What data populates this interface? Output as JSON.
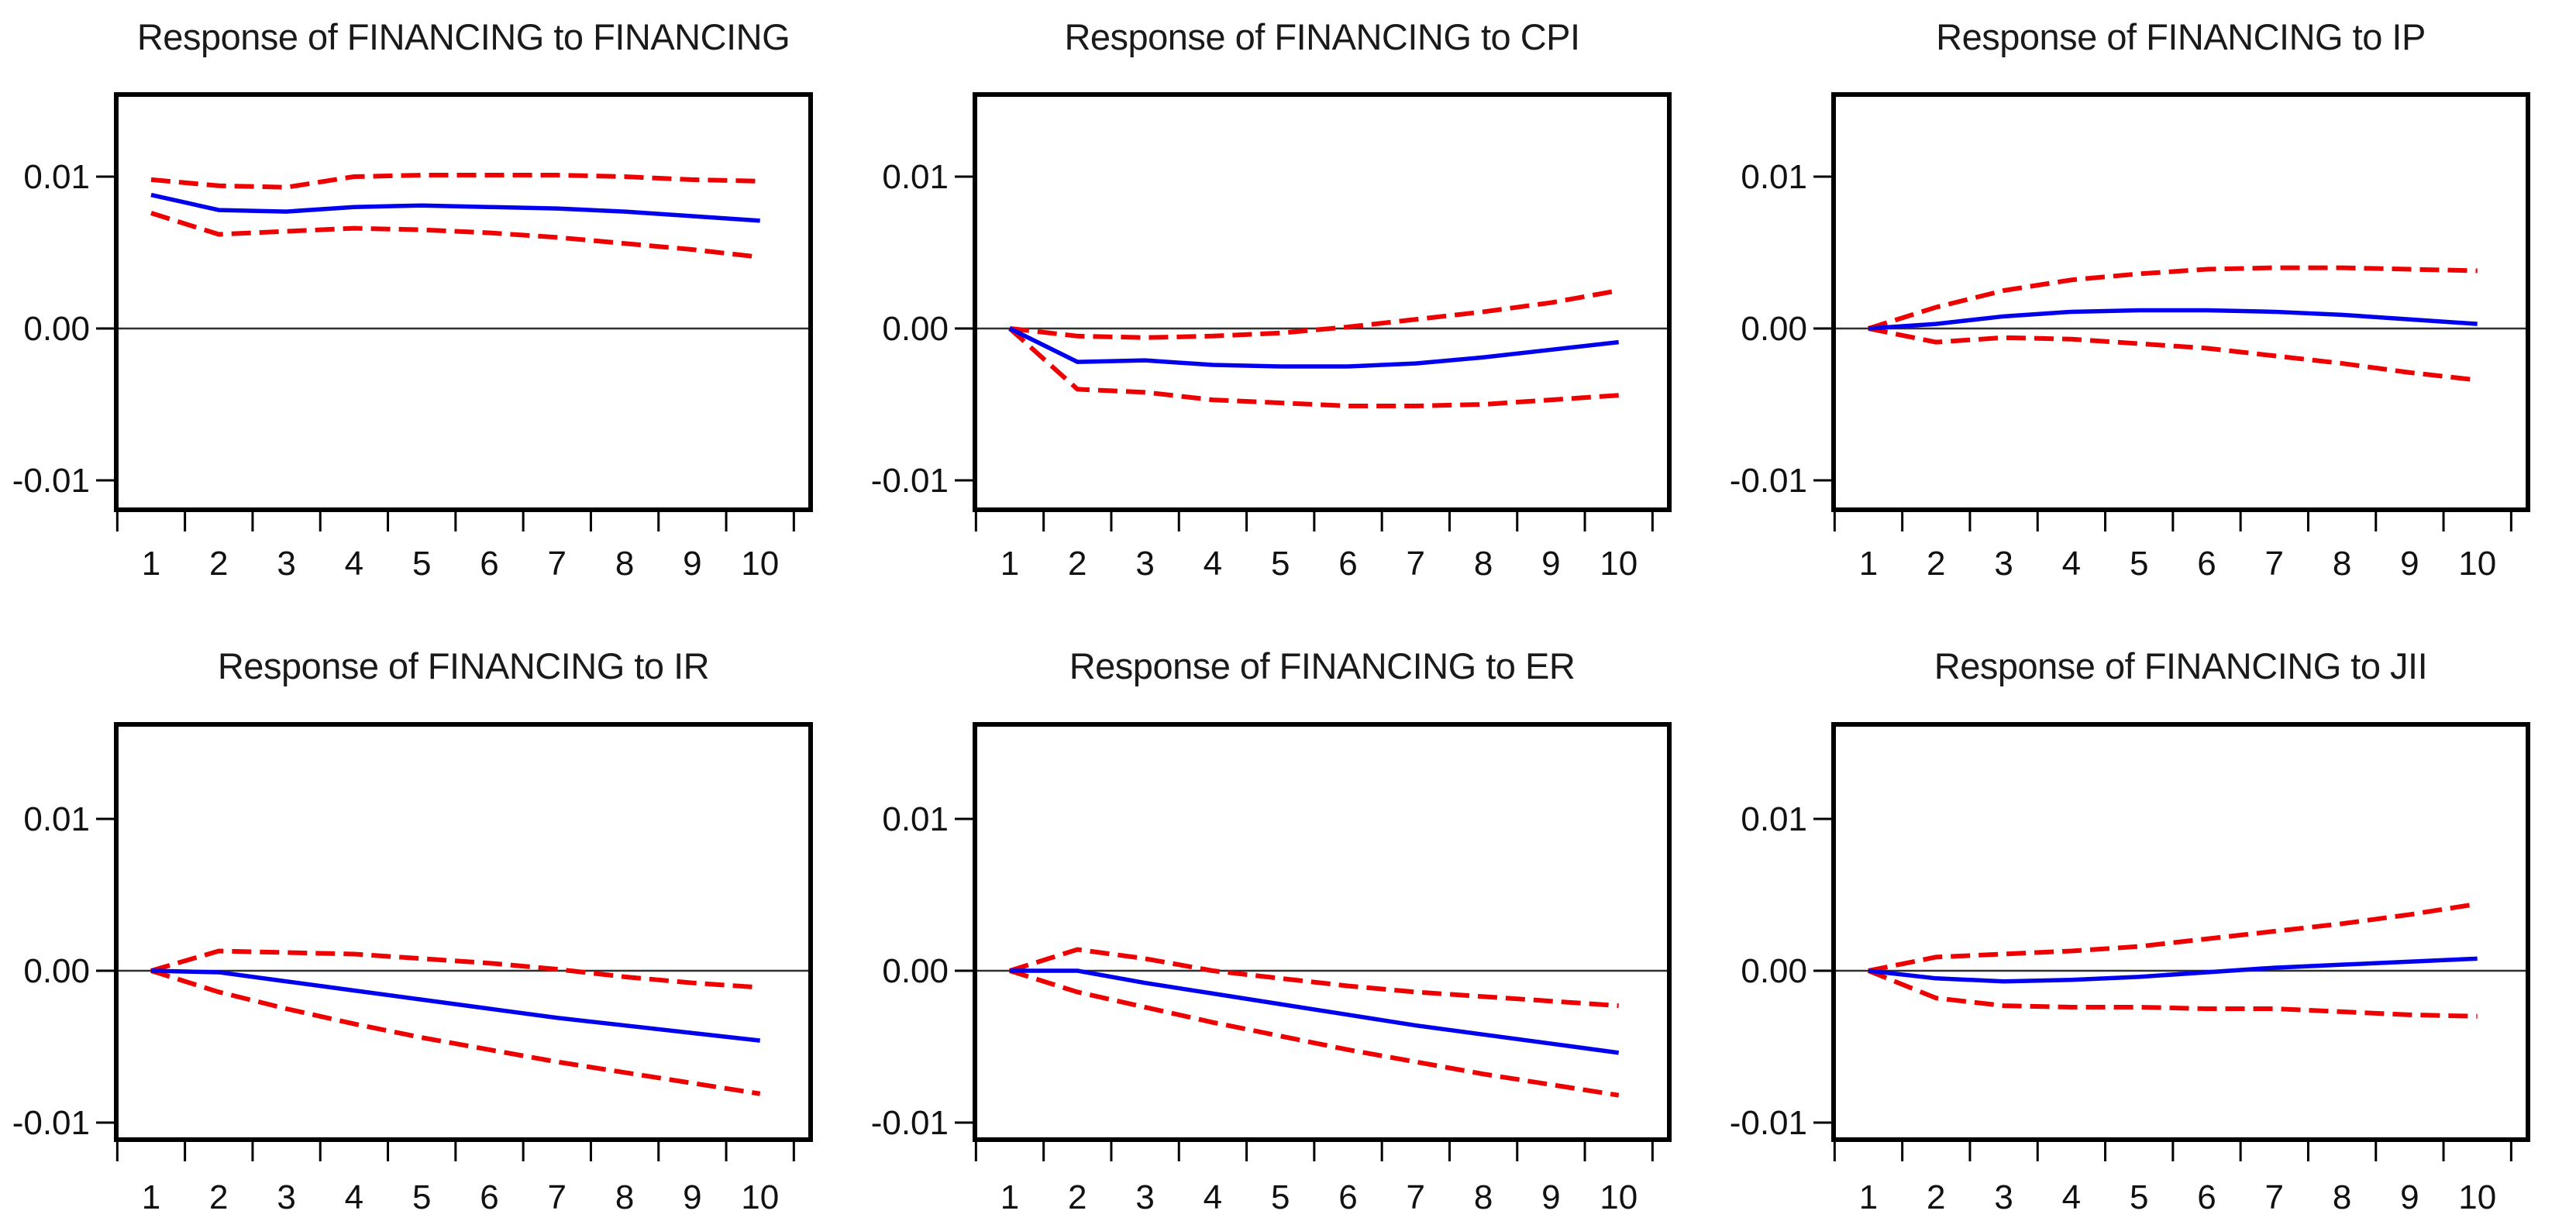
{
  "figure": {
    "background": "#ffffff",
    "rows": 2,
    "columns": 3,
    "description_texts": []
  },
  "colors": {
    "response_line": "#0000ee",
    "band_line": "#ee0000",
    "frame": "#000000",
    "zero_line": "#2f2f2f",
    "text": "#1a1a1a"
  },
  "axes": {
    "y_tick_labels": [
      "0.01",
      "0.00",
      "-0.01"
    ],
    "y_tick_values": [
      0.01,
      0.0,
      -0.01
    ],
    "x_tick_labels": [
      "1",
      "2",
      "3",
      "4",
      "5",
      "6",
      "7",
      "8",
      "9",
      "10"
    ],
    "x_tick_values": [
      1,
      2,
      3,
      4,
      5,
      6,
      7,
      8,
      9,
      10
    ],
    "ylim": [
      -0.0115,
      0.0155
    ],
    "xlim": [
      0.5,
      10.7
    ],
    "grid": false,
    "legend": "none"
  },
  "chart_data": [
    {
      "type": "line",
      "title": "Response of FINANCING to FINANCING",
      "impulse": "FINANCING",
      "response_of": "FINANCING",
      "x": [
        1,
        2,
        3,
        4,
        5,
        6,
        7,
        8,
        9,
        10
      ],
      "xlabel": "",
      "ylabel": "",
      "ylim": [
        -0.0115,
        0.0155
      ],
      "yticks": [
        0.01,
        0.0,
        -0.01
      ],
      "grid": false,
      "legend_position": "none",
      "series": [
        {
          "name": "response",
          "style": "solid",
          "color": "#0000ee",
          "values": [
            0.0088,
            0.0078,
            0.0077,
            0.008,
            0.0081,
            0.008,
            0.0079,
            0.0077,
            0.0074,
            0.0071
          ]
        },
        {
          "name": "upper_band",
          "style": "dashed",
          "color": "#ee0000",
          "values": [
            0.0098,
            0.0094,
            0.0093,
            0.01,
            0.0101,
            0.0101,
            0.0101,
            0.01,
            0.0098,
            0.0097
          ]
        },
        {
          "name": "lower_band",
          "style": "dashed",
          "color": "#ee0000",
          "values": [
            0.0076,
            0.0062,
            0.0064,
            0.0066,
            0.0065,
            0.0063,
            0.006,
            0.0056,
            0.0052,
            0.0047
          ]
        }
      ]
    },
    {
      "type": "line",
      "title": "Response of FINANCING to CPI",
      "impulse": "CPI",
      "response_of": "FINANCING",
      "x": [
        1,
        2,
        3,
        4,
        5,
        6,
        7,
        8,
        9,
        10
      ],
      "xlabel": "",
      "ylabel": "",
      "ylim": [
        -0.0115,
        0.0155
      ],
      "yticks": [
        0.01,
        0.0,
        -0.01
      ],
      "grid": false,
      "legend_position": "none",
      "series": [
        {
          "name": "response",
          "style": "solid",
          "color": "#0000ee",
          "values": [
            0.0,
            -0.0022,
            -0.0021,
            -0.0024,
            -0.0025,
            -0.0025,
            -0.0023,
            -0.0019,
            -0.0014,
            -0.0009
          ]
        },
        {
          "name": "upper_band",
          "style": "dashed",
          "color": "#ee0000",
          "values": [
            0.0,
            -0.0005,
            -0.0006,
            -0.0005,
            -0.0003,
            0.0001,
            0.0006,
            0.0011,
            0.0017,
            0.0025
          ]
        },
        {
          "name": "lower_band",
          "style": "dashed",
          "color": "#ee0000",
          "values": [
            0.0,
            -0.004,
            -0.0042,
            -0.0047,
            -0.0049,
            -0.0051,
            -0.0051,
            -0.005,
            -0.0047,
            -0.0044
          ]
        }
      ]
    },
    {
      "type": "line",
      "title": "Response of FINANCING to IP",
      "impulse": "IP",
      "response_of": "FINANCING",
      "x": [
        1,
        2,
        3,
        4,
        5,
        6,
        7,
        8,
        9,
        10
      ],
      "xlabel": "",
      "ylabel": "",
      "ylim": [
        -0.0115,
        0.0155
      ],
      "yticks": [
        0.01,
        0.0,
        -0.01
      ],
      "grid": false,
      "legend_position": "none",
      "series": [
        {
          "name": "response",
          "style": "solid",
          "color": "#0000ee",
          "values": [
            0.0,
            0.0003,
            0.0008,
            0.0011,
            0.0012,
            0.0012,
            0.0011,
            0.0009,
            0.0006,
            0.0003
          ]
        },
        {
          "name": "upper_band",
          "style": "dashed",
          "color": "#ee0000",
          "values": [
            0.0,
            0.0014,
            0.0025,
            0.0032,
            0.0036,
            0.0039,
            0.004,
            0.004,
            0.0039,
            0.0038
          ]
        },
        {
          "name": "lower_band",
          "style": "dashed",
          "color": "#ee0000",
          "values": [
            0.0,
            -0.0009,
            -0.0006,
            -0.0007,
            -0.001,
            -0.0013,
            -0.0018,
            -0.0023,
            -0.0029,
            -0.0034
          ]
        }
      ]
    },
    {
      "type": "line",
      "title": "Response of FINANCING to IR",
      "impulse": "IR",
      "response_of": "FINANCING",
      "x": [
        1,
        2,
        3,
        4,
        5,
        6,
        7,
        8,
        9,
        10
      ],
      "xlabel": "",
      "ylabel": "",
      "ylim": [
        -0.0115,
        0.0155
      ],
      "yticks": [
        0.01,
        0.0,
        -0.01
      ],
      "grid": false,
      "legend_position": "none",
      "series": [
        {
          "name": "response",
          "style": "solid",
          "color": "#0000ee",
          "values": [
            0.0,
            -0.0001,
            -0.0007,
            -0.0013,
            -0.0019,
            -0.0025,
            -0.0031,
            -0.0036,
            -0.0041,
            -0.0046
          ]
        },
        {
          "name": "upper_band",
          "style": "dashed",
          "color": "#ee0000",
          "values": [
            0.0,
            0.0013,
            0.0012,
            0.0011,
            0.0008,
            0.0005,
            0.0001,
            -0.0004,
            -0.0008,
            -0.0011
          ]
        },
        {
          "name": "lower_band",
          "style": "dashed",
          "color": "#ee0000",
          "values": [
            0.0,
            -0.0014,
            -0.0025,
            -0.0035,
            -0.0044,
            -0.0052,
            -0.006,
            -0.0067,
            -0.0074,
            -0.0081
          ]
        }
      ]
    },
    {
      "type": "line",
      "title": "Response of FINANCING to ER",
      "impulse": "ER",
      "response_of": "FINANCING",
      "x": [
        1,
        2,
        3,
        4,
        5,
        6,
        7,
        8,
        9,
        10
      ],
      "xlabel": "",
      "ylabel": "",
      "ylim": [
        -0.0115,
        0.0155
      ],
      "yticks": [
        0.01,
        0.0,
        -0.01
      ],
      "grid": false,
      "legend_position": "none",
      "series": [
        {
          "name": "response",
          "style": "solid",
          "color": "#0000ee",
          "values": [
            0.0,
            0.0,
            -0.0008,
            -0.0015,
            -0.0022,
            -0.0029,
            -0.0036,
            -0.0042,
            -0.0048,
            -0.0054
          ]
        },
        {
          "name": "upper_band",
          "style": "dashed",
          "color": "#ee0000",
          "values": [
            0.0,
            0.0014,
            0.0008,
            0.0,
            -0.0005,
            -0.001,
            -0.0014,
            -0.0017,
            -0.002,
            -0.0023
          ]
        },
        {
          "name": "lower_band",
          "style": "dashed",
          "color": "#ee0000",
          "values": [
            0.0,
            -0.0014,
            -0.0024,
            -0.0034,
            -0.0043,
            -0.0052,
            -0.006,
            -0.0068,
            -0.0075,
            -0.0082
          ]
        }
      ]
    },
    {
      "type": "line",
      "title": "Response of FINANCING to JII",
      "impulse": "JII",
      "response_of": "FINANCING",
      "x": [
        1,
        2,
        3,
        4,
        5,
        6,
        7,
        8,
        9,
        10
      ],
      "xlabel": "",
      "ylabel": "",
      "ylim": [
        -0.0115,
        0.0155
      ],
      "yticks": [
        0.01,
        0.0,
        -0.01
      ],
      "grid": false,
      "legend_position": "none",
      "series": [
        {
          "name": "response",
          "style": "solid",
          "color": "#0000ee",
          "values": [
            0.0,
            -0.0005,
            -0.0007,
            -0.0006,
            -0.0004,
            -0.0001,
            0.0002,
            0.0004,
            0.0006,
            0.0008
          ]
        },
        {
          "name": "upper_band",
          "style": "dashed",
          "color": "#ee0000",
          "values": [
            0.0,
            0.0009,
            0.0011,
            0.0013,
            0.0016,
            0.0021,
            0.0026,
            0.0031,
            0.0037,
            0.0044
          ]
        },
        {
          "name": "lower_band",
          "style": "dashed",
          "color": "#ee0000",
          "values": [
            0.0,
            -0.0018,
            -0.0023,
            -0.0024,
            -0.0024,
            -0.0025,
            -0.0025,
            -0.0027,
            -0.0029,
            -0.003
          ]
        }
      ]
    }
  ]
}
